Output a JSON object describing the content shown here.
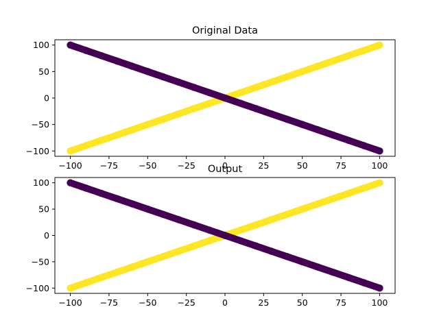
{
  "chart_data": [
    {
      "type": "scatter",
      "title": "Original Data",
      "xlabel": "",
      "ylabel": "",
      "xlim": [
        -110,
        110
      ],
      "ylim": [
        -110,
        110
      ],
      "x_ticks": [
        -100,
        -75,
        -50,
        -25,
        0,
        25,
        50,
        75,
        100
      ],
      "y_ticks": [
        -100,
        -50,
        0,
        50,
        100
      ],
      "x_tick_labels": [
        "−100",
        "−75",
        "−50",
        "−25",
        "0",
        "25",
        "50",
        "75",
        "100"
      ],
      "y_tick_labels": [
        "−100",
        "−50",
        "0",
        "50",
        "100"
      ],
      "grid": false,
      "series": [
        {
          "color": "#fde725",
          "x": [
            -100,
            -90,
            -80,
            -70,
            -60,
            -50,
            -40,
            -30,
            -20,
            -10,
            0,
            10,
            20,
            30,
            40,
            50,
            60,
            70,
            80,
            90,
            100
          ],
          "y": [
            -100,
            -90,
            -80,
            -70,
            -60,
            -50,
            -40,
            -30,
            -20,
            -10,
            0,
            10,
            20,
            30,
            40,
            50,
            60,
            70,
            80,
            90,
            100
          ]
        },
        {
          "color": "#440154",
          "x": [
            -100,
            -90,
            -80,
            -70,
            -60,
            -50,
            -40,
            -30,
            -20,
            -10,
            0,
            10,
            20,
            30,
            40,
            50,
            60,
            70,
            80,
            90,
            100
          ],
          "y": [
            100,
            90,
            80,
            70,
            60,
            50,
            40,
            30,
            20,
            10,
            0,
            -10,
            -20,
            -30,
            -40,
            -50,
            -60,
            -70,
            -80,
            -90,
            -100
          ]
        }
      ]
    },
    {
      "type": "scatter",
      "title": "Output",
      "xlabel": "",
      "ylabel": "",
      "xlim": [
        -110,
        110
      ],
      "ylim": [
        -110,
        110
      ],
      "x_ticks": [
        -100,
        -75,
        -50,
        -25,
        0,
        25,
        50,
        75,
        100
      ],
      "y_ticks": [
        -100,
        -50,
        0,
        50,
        100
      ],
      "x_tick_labels": [
        "−100",
        "−75",
        "−50",
        "−25",
        "0",
        "25",
        "50",
        "75",
        "100"
      ],
      "y_tick_labels": [
        "−100",
        "−50",
        "0",
        "50",
        "100"
      ],
      "grid": false,
      "series": [
        {
          "color": "#fde725",
          "x": [
            -100,
            -90,
            -80,
            -70,
            -60,
            -50,
            -40,
            -30,
            -20,
            -10,
            0,
            10,
            20,
            30,
            40,
            50,
            60,
            70,
            80,
            90,
            100
          ],
          "y": [
            -100,
            -90,
            -80,
            -70,
            -60,
            -50,
            -40,
            -30,
            -20,
            -10,
            0,
            10,
            20,
            30,
            40,
            50,
            60,
            70,
            80,
            90,
            100
          ]
        },
        {
          "color": "#440154",
          "x": [
            -100,
            -90,
            -80,
            -70,
            -60,
            -50,
            -40,
            -30,
            -20,
            -10,
            0,
            10,
            20,
            30,
            40,
            50,
            60,
            70,
            80,
            90,
            100
          ],
          "y": [
            100,
            90,
            80,
            70,
            60,
            50,
            40,
            30,
            20,
            10,
            0,
            -10,
            -20,
            -30,
            -40,
            -50,
            -60,
            -70,
            -80,
            -90,
            -100
          ]
        }
      ]
    }
  ]
}
